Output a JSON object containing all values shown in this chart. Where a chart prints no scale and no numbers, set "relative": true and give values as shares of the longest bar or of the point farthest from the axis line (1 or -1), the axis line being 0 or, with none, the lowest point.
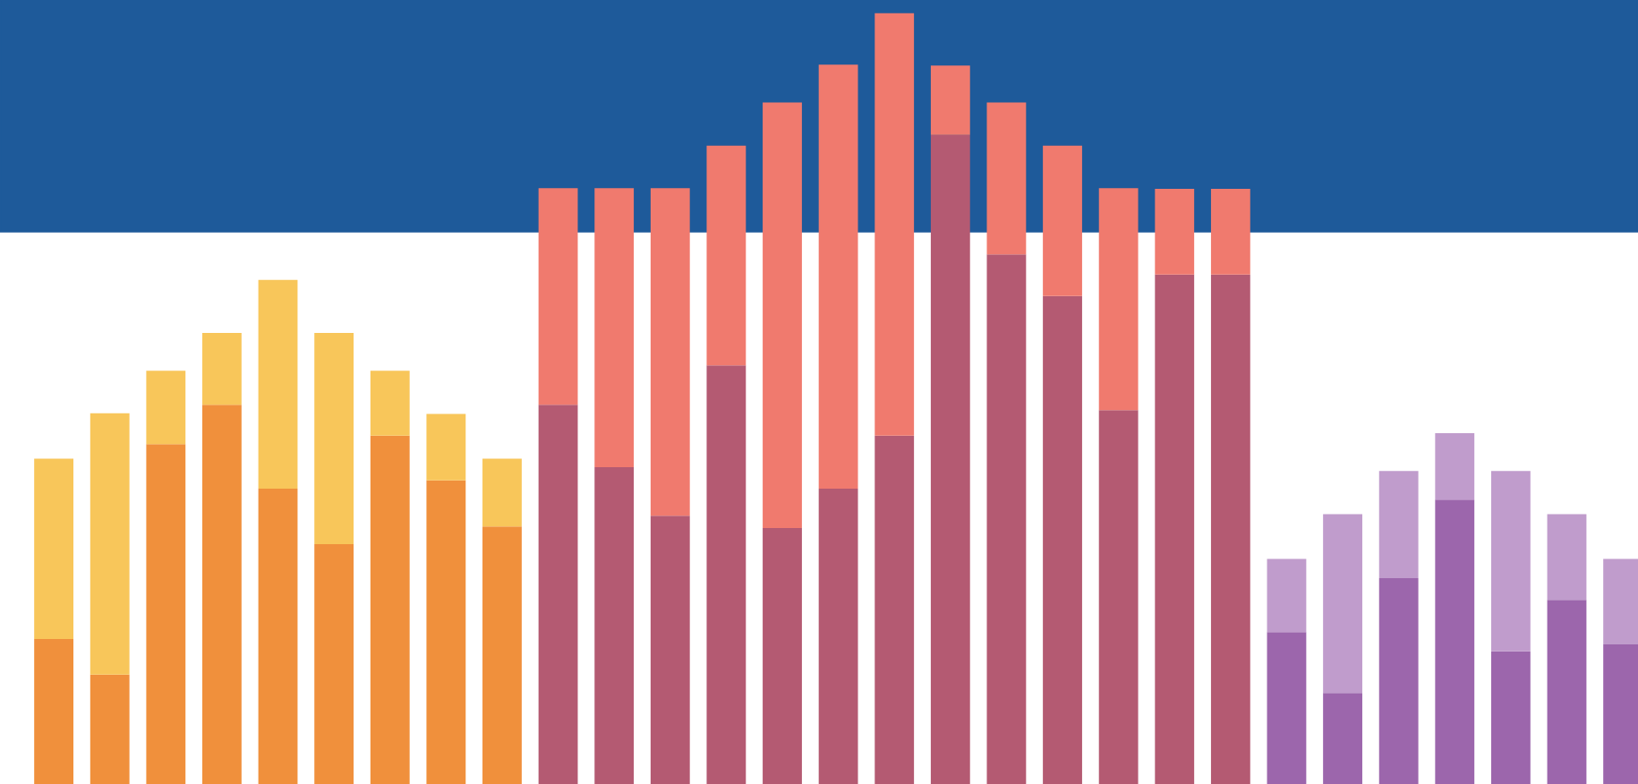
{
  "chart_data": {
    "type": "bar",
    "relative": true,
    "stacked": true,
    "categories": [
      null,
      null,
      null,
      null,
      null,
      null,
      null,
      null,
      null,
      null,
      null,
      null,
      null,
      null,
      null,
      null,
      null,
      null,
      null,
      null,
      null,
      null,
      null,
      null,
      null,
      null,
      null,
      null,
      null
    ],
    "series": [
      {
        "colors": [
          "#f0903c",
          "#f0903c",
          "#f0903c",
          "#f0903c",
          "#f0903c",
          "#f0903c",
          "#f0903c",
          "#f0903c",
          "#f0903c",
          "#b45a72",
          "#b45a72",
          "#b45a72",
          "#b45a72",
          "#b45a72",
          "#b45a72",
          "#b45a72",
          "#b45a72",
          "#b45a72",
          "#b45a72",
          "#b45a72",
          "#b45a72",
          "#b45a72",
          "#9c66ac",
          "#9c66ac",
          "#9c66ac",
          "#9c66ac",
          "#9c66ac",
          "#9c66ac",
          "#9c66ac"
        ],
        "values": [
          0.188,
          0.142,
          0.441,
          0.492,
          0.383,
          0.311,
          0.452,
          0.394,
          0.334,
          0.492,
          0.411,
          0.348,
          0.543,
          0.332,
          0.383,
          0.452,
          0.842,
          0.687,
          0.633,
          0.485,
          0.661,
          0.661,
          0.197,
          0.118,
          0.267,
          0.369,
          0.172,
          0.239,
          0.181
        ]
      },
      {
        "colors": [
          "#f8c65a",
          "#f8c65a",
          "#f8c65a",
          "#f8c65a",
          "#f8c65a",
          "#f8c65a",
          "#f8c65a",
          "#f8c65a",
          "#f8c65a",
          "#f07a6e",
          "#f07a6e",
          "#f07a6e",
          "#f07a6e",
          "#f07a6e",
          "#f07a6e",
          "#f07a6e",
          "#f07a6e",
          "#f07a6e",
          "#f07a6e",
          "#f07a6e",
          "#f07a6e",
          "#f07a6e",
          "#c09ccc",
          "#c09ccc",
          "#c09ccc",
          "#c09ccc",
          "#c09ccc",
          "#c09ccc",
          "#c09ccc"
        ],
        "values": [
          0.234,
          0.339,
          0.095,
          0.093,
          0.271,
          0.274,
          0.084,
          0.086,
          0.088,
          0.281,
          0.362,
          0.425,
          0.285,
          0.552,
          0.55,
          0.548,
          0.09,
          0.197,
          0.195,
          0.288,
          0.111,
          0.111,
          0.095,
          0.232,
          0.139,
          0.086,
          0.234,
          0.111,
          0.111
        ]
      }
    ]
  }
}
